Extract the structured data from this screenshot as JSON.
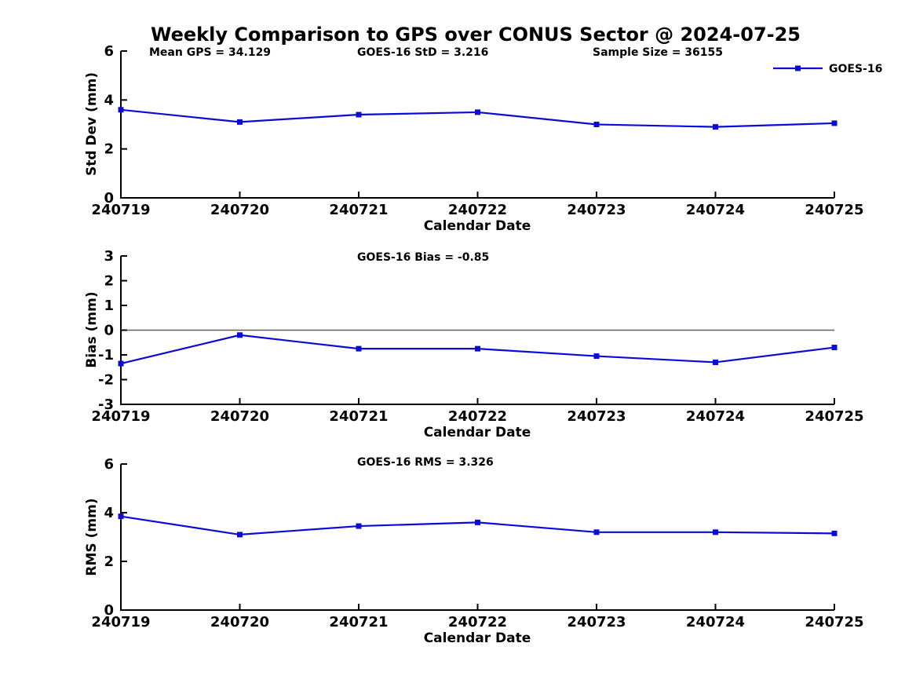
{
  "title": "Weekly Comparison to GPS over CONUS Sector @ 2024-07-25",
  "legend": {
    "label": "GOES-16"
  },
  "colors": {
    "line": "#0b0bd8",
    "axis": "#000000",
    "zero_line": "#606060",
    "background": "#ffffff",
    "text": "#000000"
  },
  "chart_data": [
    {
      "type": "line",
      "panel": "std-dev",
      "ylabel": "Std Dev (mm)",
      "xlabel": "Calendar Date",
      "categories": [
        "240719",
        "240720",
        "240721",
        "240722",
        "240723",
        "240724",
        "240725"
      ],
      "series": [
        {
          "name": "GOES-16",
          "values": [
            3.6,
            3.1,
            3.4,
            3.5,
            3.0,
            2.9,
            3.05
          ]
        }
      ],
      "ylim": [
        0,
        6
      ],
      "yticks": [
        0,
        2,
        4,
        6
      ],
      "grid": false,
      "zero_line": false,
      "legend_position": "upper-right-outside",
      "annotations": [
        {
          "text": "Mean GPS = 34.129"
        },
        {
          "text": "GOES-16 StD = 3.216"
        },
        {
          "text": "Sample Size = 36155"
        }
      ]
    },
    {
      "type": "line",
      "panel": "bias",
      "ylabel": "Bias (mm)",
      "xlabel": "Calendar Date",
      "categories": [
        "240719",
        "240720",
        "240721",
        "240722",
        "240723",
        "240724",
        "240725"
      ],
      "series": [
        {
          "name": "GOES-16",
          "values": [
            -1.35,
            -0.2,
            -0.75,
            -0.75,
            -1.05,
            -1.3,
            -0.7
          ]
        }
      ],
      "ylim": [
        -3,
        3
      ],
      "yticks": [
        -3,
        -2,
        -1,
        0,
        1,
        2,
        3
      ],
      "grid": false,
      "zero_line": true,
      "annotations": [
        {
          "text": "GOES-16 Bias  = -0.85"
        }
      ]
    },
    {
      "type": "line",
      "panel": "rms",
      "ylabel": "RMS (mm)",
      "xlabel": "Calendar Date",
      "categories": [
        "240719",
        "240720",
        "240721",
        "240722",
        "240723",
        "240724",
        "240725"
      ],
      "series": [
        {
          "name": "GOES-16",
          "values": [
            3.85,
            3.1,
            3.45,
            3.6,
            3.2,
            3.2,
            3.15
          ]
        }
      ],
      "ylim": [
        0,
        6
      ],
      "yticks": [
        0,
        2,
        4,
        6
      ],
      "grid": false,
      "zero_line": false,
      "annotations": [
        {
          "text": "GOES-16 RMS = 3.326"
        }
      ]
    }
  ]
}
